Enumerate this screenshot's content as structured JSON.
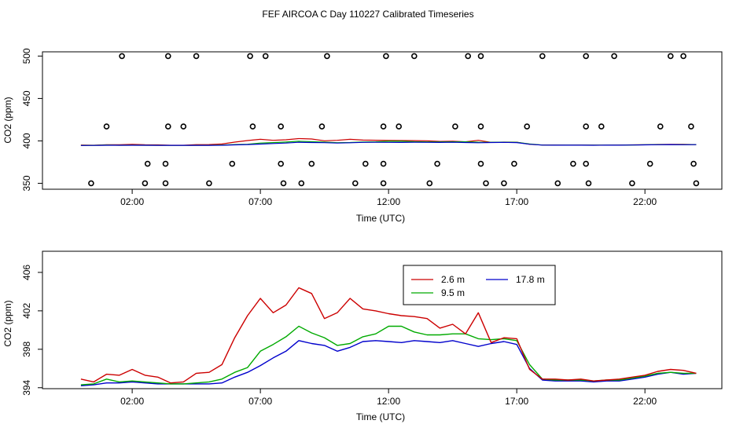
{
  "chart_data": [
    {
      "type": "scatter",
      "panel": "top",
      "title": "FEF AIRCOA C  Day 110227  Calibrated Timeseries",
      "xlabel": "Time (UTC)",
      "ylabel": "CO2 (ppm)",
      "xlim": [
        -1.5,
        25.0
      ],
      "ylim": [
        343,
        505
      ],
      "xticks": [
        2,
        7,
        12,
        17,
        22
      ],
      "xtick_labels": [
        "02:00",
        "07:00",
        "12:00",
        "17:00",
        "22:00"
      ],
      "yticks": [
        350,
        400,
        450,
        500
      ],
      "ytick_labels": [
        "350",
        "400",
        "450",
        "500"
      ],
      "open_circles": [
        {
          "x": 1.6,
          "y": 500
        },
        {
          "x": 3.4,
          "y": 500
        },
        {
          "x": 4.5,
          "y": 500
        },
        {
          "x": 6.6,
          "y": 500
        },
        {
          "x": 7.2,
          "y": 500
        },
        {
          "x": 9.6,
          "y": 500
        },
        {
          "x": 11.9,
          "y": 500
        },
        {
          "x": 13.0,
          "y": 500
        },
        {
          "x": 15.1,
          "y": 500
        },
        {
          "x": 15.6,
          "y": 500
        },
        {
          "x": 18.0,
          "y": 500
        },
        {
          "x": 19.7,
          "y": 500
        },
        {
          "x": 20.8,
          "y": 500
        },
        {
          "x": 23.0,
          "y": 500
        },
        {
          "x": 23.5,
          "y": 500
        },
        {
          "x": 1.0,
          "y": 417
        },
        {
          "x": 3.4,
          "y": 417
        },
        {
          "x": 4.0,
          "y": 417
        },
        {
          "x": 6.7,
          "y": 417
        },
        {
          "x": 7.8,
          "y": 417
        },
        {
          "x": 9.4,
          "y": 417
        },
        {
          "x": 11.8,
          "y": 417
        },
        {
          "x": 12.4,
          "y": 417
        },
        {
          "x": 14.6,
          "y": 417
        },
        {
          "x": 15.6,
          "y": 417
        },
        {
          "x": 17.4,
          "y": 417
        },
        {
          "x": 19.7,
          "y": 417
        },
        {
          "x": 20.3,
          "y": 417
        },
        {
          "x": 22.6,
          "y": 417
        },
        {
          "x": 23.8,
          "y": 417
        },
        {
          "x": 2.6,
          "y": 373
        },
        {
          "x": 3.3,
          "y": 373
        },
        {
          "x": 5.9,
          "y": 373
        },
        {
          "x": 7.8,
          "y": 373
        },
        {
          "x": 9.0,
          "y": 373
        },
        {
          "x": 11.1,
          "y": 373
        },
        {
          "x": 11.8,
          "y": 373
        },
        {
          "x": 13.9,
          "y": 373
        },
        {
          "x": 15.6,
          "y": 373
        },
        {
          "x": 16.9,
          "y": 373
        },
        {
          "x": 19.2,
          "y": 373
        },
        {
          "x": 19.7,
          "y": 373
        },
        {
          "x": 22.2,
          "y": 373
        },
        {
          "x": 23.9,
          "y": 373
        },
        {
          "x": 0.4,
          "y": 350
        },
        {
          "x": 2.5,
          "y": 350
        },
        {
          "x": 3.3,
          "y": 350
        },
        {
          "x": 5.0,
          "y": 350
        },
        {
          "x": 7.9,
          "y": 350
        },
        {
          "x": 8.6,
          "y": 350
        },
        {
          "x": 10.7,
          "y": 350
        },
        {
          "x": 11.8,
          "y": 350
        },
        {
          "x": 13.6,
          "y": 350
        },
        {
          "x": 15.8,
          "y": 350
        },
        {
          "x": 16.5,
          "y": 350
        },
        {
          "x": 18.6,
          "y": 350
        },
        {
          "x": 19.8,
          "y": 350
        },
        {
          "x": 21.5,
          "y": 350
        },
        {
          "x": 24.0,
          "y": 350
        }
      ],
      "series_color": [
        "#cc0000",
        "#00aa00",
        "#0000cc",
        "#cc00cc"
      ]
    },
    {
      "type": "line",
      "panel": "bottom",
      "xlabel": "Time (UTC)",
      "ylabel": "CO2 (ppm)",
      "xlim": [
        -1.5,
        25.0
      ],
      "ylim": [
        393.9,
        408.2
      ],
      "xticks": [
        2,
        7,
        12,
        17,
        22
      ],
      "xtick_labels": [
        "02:00",
        "07:00",
        "12:00",
        "17:00",
        "22:00"
      ],
      "yticks": [
        394,
        398,
        402,
        406
      ],
      "ytick_labels": [
        "394",
        "398",
        "402",
        "406"
      ],
      "legend": {
        "placement": "top-center",
        "entries": [
          {
            "label": "2.6 m",
            "color": "#cc0000"
          },
          {
            "label": "17.8 m",
            "color": "#0000cc"
          },
          {
            "label": "9.5 m",
            "color": "#00aa00"
          }
        ]
      },
      "x": [
        0.0,
        0.5,
        1.0,
        1.5,
        2.0,
        2.5,
        3.0,
        3.5,
        4.0,
        4.5,
        5.0,
        5.5,
        6.0,
        6.5,
        7.0,
        7.5,
        8.0,
        8.5,
        9.0,
        9.5,
        10.0,
        10.5,
        11.0,
        11.5,
        12.0,
        12.5,
        13.0,
        13.5,
        14.0,
        14.5,
        15.0,
        15.5,
        16.0,
        16.5,
        17.0,
        17.5,
        18.0,
        18.5,
        19.0,
        19.5,
        20.0,
        20.5,
        21.0,
        21.5,
        22.0,
        22.5,
        23.0,
        23.5,
        24.0
      ],
      "series": [
        {
          "name": "2.6 m",
          "color": "#cc0000",
          "values": [
            394.9,
            394.6,
            395.4,
            395.3,
            395.9,
            395.3,
            395.1,
            394.5,
            394.6,
            395.5,
            395.6,
            396.4,
            399.2,
            401.5,
            403.3,
            401.8,
            402.6,
            404.4,
            403.8,
            401.2,
            401.8,
            403.3,
            402.2,
            402.0,
            401.7,
            401.5,
            401.4,
            401.2,
            400.2,
            400.6,
            399.6,
            401.8,
            398.7,
            399.2,
            399.1,
            395.9,
            394.9,
            394.9,
            394.8,
            394.9,
            394.7,
            394.8,
            394.9,
            395.1,
            395.3,
            395.7,
            395.9,
            395.8,
            395.5
          ]
        },
        {
          "name": "9.5 m",
          "color": "#00aa00",
          "values": [
            394.3,
            394.4,
            394.9,
            394.6,
            394.7,
            394.6,
            394.5,
            394.4,
            394.4,
            394.5,
            394.6,
            394.9,
            395.6,
            396.1,
            397.8,
            398.5,
            399.3,
            400.4,
            399.7,
            399.2,
            398.4,
            398.6,
            399.3,
            399.6,
            400.4,
            400.4,
            399.8,
            399.5,
            399.5,
            399.6,
            399.6,
            399.1,
            399.0,
            399.1,
            398.9,
            396.4,
            394.9,
            394.8,
            394.8,
            394.8,
            394.7,
            394.8,
            394.8,
            395.0,
            395.2,
            395.5,
            395.6,
            395.5,
            395.5
          ]
        },
        {
          "name": "17.8 m",
          "color": "#0000cc",
          "values": [
            394.2,
            394.3,
            394.5,
            394.5,
            394.6,
            394.5,
            394.4,
            394.4,
            394.4,
            394.4,
            394.4,
            394.5,
            395.1,
            395.6,
            396.3,
            397.1,
            397.8,
            398.9,
            398.6,
            398.4,
            397.8,
            398.2,
            398.8,
            398.9,
            398.8,
            398.7,
            398.9,
            398.8,
            398.7,
            398.9,
            398.6,
            398.3,
            398.6,
            398.8,
            398.5,
            396.0,
            394.8,
            394.7,
            394.7,
            394.7,
            394.6,
            394.7,
            394.7,
            394.9,
            395.1,
            395.4,
            395.6,
            395.4,
            395.5
          ]
        }
      ]
    }
  ]
}
